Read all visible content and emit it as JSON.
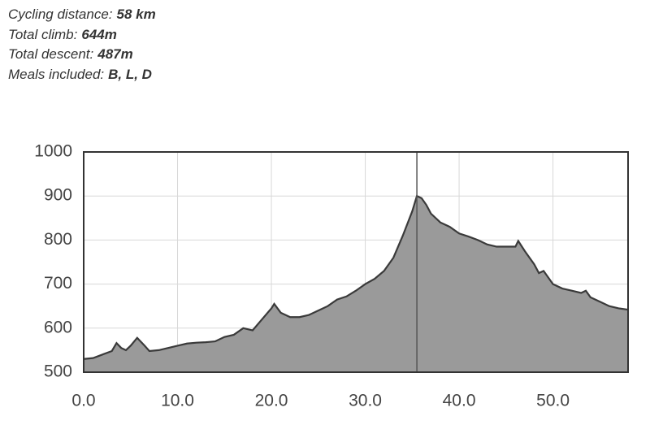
{
  "summary": [
    {
      "label": "Cycling distance:",
      "value": "58 km"
    },
    {
      "label": "Total climb:",
      "value": "644m"
    },
    {
      "label": "Total descent:",
      "value": "487m"
    },
    {
      "label": "Meals included:",
      "value": "B, L, D"
    }
  ],
  "chart_data": {
    "type": "area",
    "x": [
      0,
      1,
      2,
      3,
      3.5,
      4,
      4.5,
      5,
      5.7,
      6.5,
      7,
      8,
      9,
      10,
      11,
      12,
      13,
      14,
      15,
      16,
      17,
      18,
      19,
      20,
      20.3,
      21,
      22,
      23,
      24,
      25,
      26,
      27,
      28,
      29,
      30,
      31,
      32,
      33,
      34,
      35,
      35.5,
      36,
      36.5,
      37,
      38,
      39,
      40,
      41,
      42,
      43,
      44,
      45,
      46,
      46.3,
      47,
      48,
      48.5,
      49,
      50,
      51,
      52,
      53,
      53.5,
      54,
      55,
      56,
      57,
      58
    ],
    "values": [
      530,
      532,
      540,
      548,
      566,
      555,
      550,
      560,
      578,
      560,
      548,
      550,
      555,
      560,
      565,
      567,
      568,
      570,
      580,
      585,
      600,
      595,
      620,
      645,
      655,
      635,
      625,
      625,
      630,
      640,
      650,
      665,
      672,
      685,
      700,
      712,
      730,
      760,
      810,
      865,
      900,
      895,
      880,
      860,
      840,
      830,
      815,
      808,
      800,
      790,
      785,
      785,
      785,
      798,
      775,
      745,
      725,
      730,
      700,
      690,
      685,
      680,
      685,
      670,
      660,
      650,
      645,
      642
    ],
    "color": "#9a9a9a",
    "line_color": "#3a3a3a",
    "marker_x": 35.5,
    "xlim": [
      0,
      58
    ],
    "xticks": [
      {
        "value": 0,
        "label": "0.0"
      },
      {
        "value": 10,
        "label": "10.0"
      },
      {
        "value": 20,
        "label": "20.0"
      },
      {
        "value": 30,
        "label": "30.0"
      },
      {
        "value": 40,
        "label": "40.0"
      },
      {
        "value": 50,
        "label": "50.0"
      }
    ],
    "ylim": [
      500,
      1000
    ],
    "yticks": [
      500,
      600,
      700,
      800,
      900,
      1000
    ],
    "grid": true
  }
}
